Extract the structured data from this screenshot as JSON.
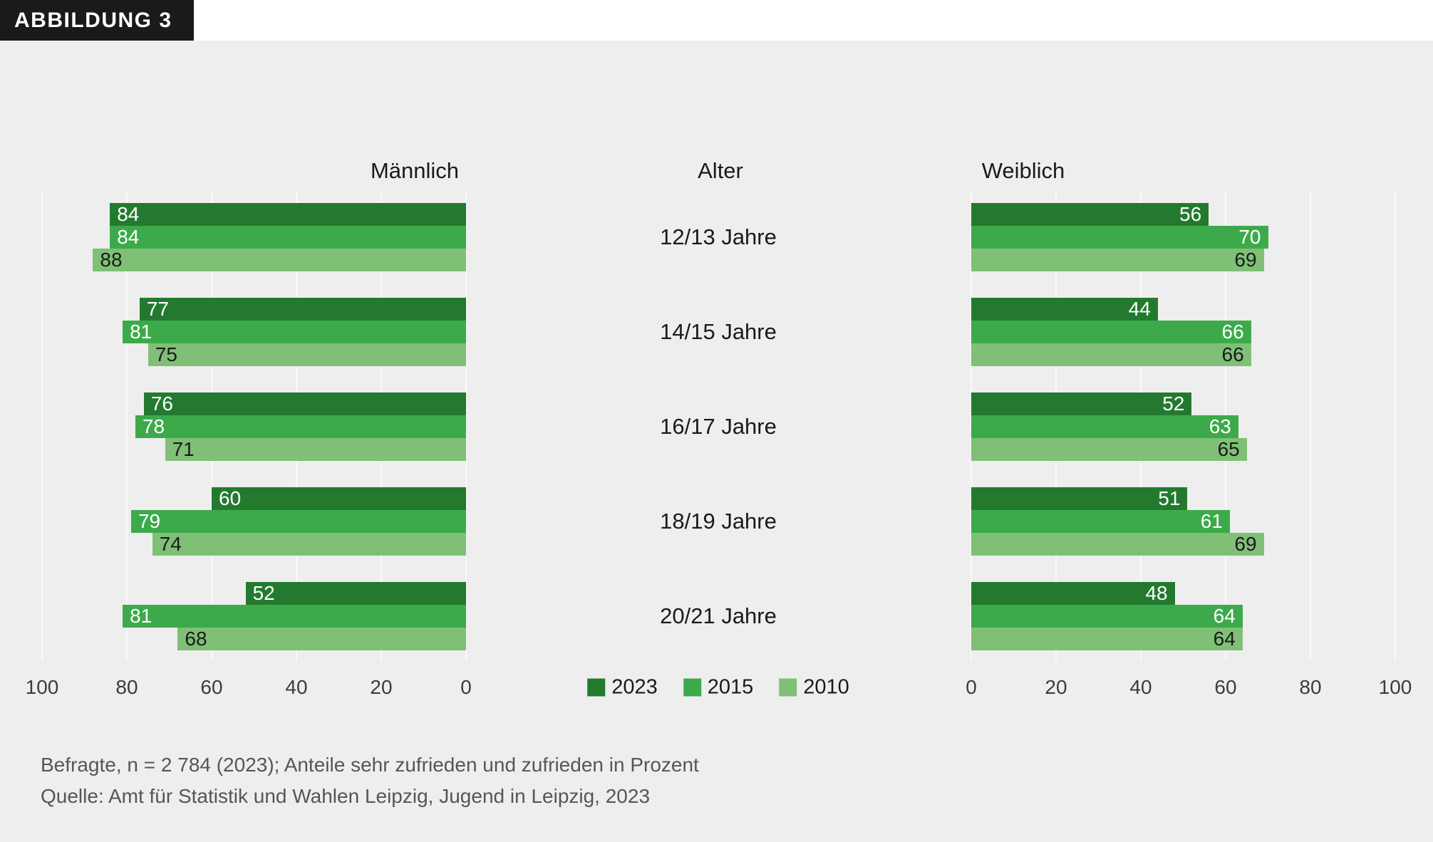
{
  "figure_tag": "ABBILDUNG 3",
  "panel_titles": {
    "male": "Männlich",
    "center": "Alter",
    "female": "Weiblich"
  },
  "footnote": {
    "line1": "Befragte, n = 2 784 (2023); Anteile sehr zufrieden und zufrieden in Prozent",
    "line2": "Quelle: Amt für Statistik und Wahlen Leipzig, Jugend in Leipzig, 2023"
  },
  "colors": {
    "year2023": "#237a2f",
    "year2015": "#3caa4b",
    "year2010": "#7fc076",
    "background": "#eeeeee",
    "gridline": "#f9f9f9",
    "tag_background": "#1c1a18"
  },
  "chart_data": {
    "type": "bar",
    "orientation": "horizontal",
    "mirrored": true,
    "categories": [
      "12/13 Jahre",
      "14/15 Jahre",
      "16/17 Jahre",
      "18/19 Jahre",
      "20/21 Jahre"
    ],
    "xlim": [
      0,
      100
    ],
    "ticks": [
      0,
      20,
      40,
      60,
      80,
      100
    ],
    "grid": true,
    "legend_position": "bottom-center",
    "legend": [
      {
        "label": "2023",
        "color": "#237a2f",
        "text": "#ffffff"
      },
      {
        "label": "2015",
        "color": "#3caa4b",
        "text": "#ffffff"
      },
      {
        "label": "2010",
        "color": "#7fc076",
        "text": "#1a1a1a"
      }
    ],
    "panels": [
      {
        "key": "male",
        "title": "Männlich",
        "direction": "rtl",
        "series": [
          {
            "name": "2023",
            "values": [
              84,
              77,
              76,
              60,
              52
            ]
          },
          {
            "name": "2015",
            "values": [
              84,
              81,
              78,
              79,
              81
            ]
          },
          {
            "name": "2010",
            "values": [
              88,
              75,
              71,
              74,
              68
            ]
          }
        ]
      },
      {
        "key": "female",
        "title": "Weiblich",
        "direction": "ltr",
        "series": [
          {
            "name": "2023",
            "values": [
              56,
              44,
              52,
              51,
              48
            ]
          },
          {
            "name": "2015",
            "values": [
              70,
              66,
              63,
              61,
              64
            ]
          },
          {
            "name": "2010",
            "values": [
              69,
              66,
              65,
              69,
              64
            ]
          }
        ]
      }
    ]
  }
}
